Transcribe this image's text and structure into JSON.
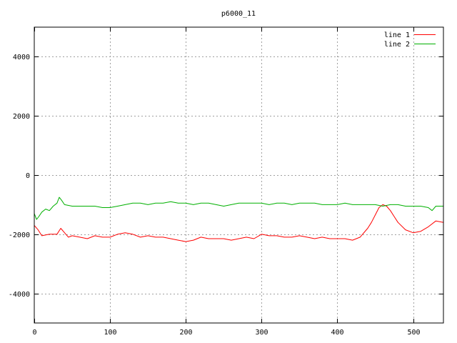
{
  "chart_data": {
    "type": "line",
    "title": "p6000_11",
    "xlabel": "",
    "ylabel": "",
    "xlim": [
      0,
      540
    ],
    "ylim": [
      -5000,
      5000
    ],
    "xticks": [
      0,
      100,
      200,
      300,
      400,
      500
    ],
    "yticks": [
      -4000,
      -2000,
      0,
      2000,
      4000
    ],
    "grid": true,
    "legend_position": "top-right",
    "series": [
      {
        "name": "line 1",
        "color": "#ff0000",
        "x": [
          0,
          5,
          10,
          20,
          30,
          35,
          40,
          45,
          50,
          60,
          70,
          80,
          90,
          100,
          110,
          120,
          130,
          140,
          150,
          160,
          170,
          180,
          190,
          200,
          210,
          220,
          230,
          240,
          250,
          260,
          270,
          280,
          290,
          300,
          310,
          320,
          330,
          340,
          350,
          360,
          370,
          380,
          390,
          400,
          410,
          420,
          430,
          440,
          445,
          450,
          455,
          460,
          465,
          470,
          475,
          480,
          490,
          500,
          510,
          520,
          530,
          540
        ],
        "y": [
          -1700,
          -1850,
          -2050,
          -2000,
          -2000,
          -1800,
          -1950,
          -2100,
          -2050,
          -2100,
          -2150,
          -2050,
          -2100,
          -2100,
          -2000,
          -1950,
          -2000,
          -2100,
          -2050,
          -2100,
          -2100,
          -2150,
          -2200,
          -2250,
          -2200,
          -2100,
          -2150,
          -2150,
          -2150,
          -2200,
          -2150,
          -2100,
          -2150,
          -2000,
          -2050,
          -2050,
          -2100,
          -2100,
          -2050,
          -2100,
          -2150,
          -2100,
          -2150,
          -2150,
          -2150,
          -2200,
          -2100,
          -1800,
          -1600,
          -1350,
          -1100,
          -1000,
          -1050,
          -1200,
          -1400,
          -1600,
          -1850,
          -1950,
          -1900,
          -1750,
          -1550,
          -1600
        ]
      },
      {
        "name": "line 2",
        "color": "#00b000",
        "x": [
          0,
          3,
          6,
          10,
          15,
          20,
          25,
          30,
          33,
          36,
          40,
          50,
          60,
          70,
          80,
          90,
          100,
          110,
          120,
          130,
          140,
          150,
          160,
          170,
          180,
          190,
          200,
          210,
          220,
          230,
          240,
          250,
          260,
          270,
          280,
          290,
          300,
          310,
          320,
          330,
          340,
          350,
          360,
          370,
          380,
          390,
          400,
          410,
          420,
          430,
          440,
          450,
          460,
          470,
          480,
          490,
          500,
          510,
          520,
          525,
          530,
          540
        ],
        "y": [
          -1300,
          -1500,
          -1400,
          -1250,
          -1150,
          -1200,
          -1050,
          -950,
          -750,
          -850,
          -1000,
          -1050,
          -1050,
          -1050,
          -1050,
          -1100,
          -1100,
          -1050,
          -1000,
          -950,
          -950,
          -1000,
          -950,
          -950,
          -900,
          -950,
          -950,
          -1000,
          -950,
          -950,
          -1000,
          -1050,
          -1000,
          -950,
          -950,
          -950,
          -950,
          -1000,
          -950,
          -950,
          -1000,
          -950,
          -950,
          -950,
          -1000,
          -1000,
          -1000,
          -950,
          -1000,
          -1000,
          -1000,
          -1000,
          -1050,
          -1000,
          -1000,
          -1050,
          -1050,
          -1050,
          -1100,
          -1200,
          -1050,
          -1050
        ]
      }
    ]
  }
}
